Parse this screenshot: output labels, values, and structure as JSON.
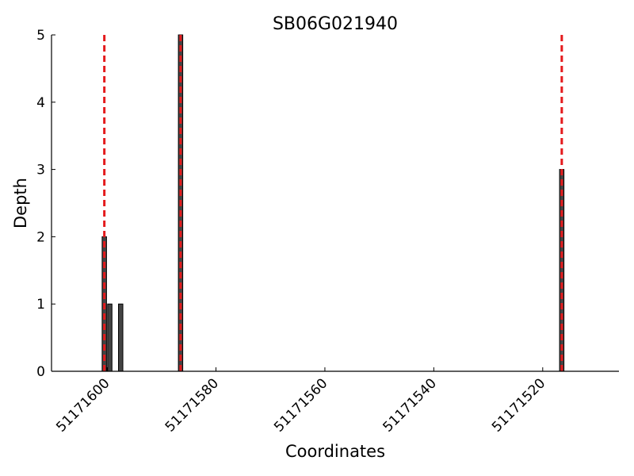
{
  "chart_data": {
    "type": "bar",
    "title": "SB06G021940",
    "xlabel": "Coordinates",
    "ylabel": "Depth",
    "x": [
      51171601,
      51171600,
      51171598,
      51171587,
      51171517
    ],
    "values": [
      2,
      1,
      1,
      5,
      3
    ],
    "color": "#444444",
    "vlines": [
      51171601,
      51171587,
      51171517
    ],
    "vline_color": "#e41a1c",
    "xlim": [
      51171610.2,
      51171506.0
    ],
    "xticks": [
      51171600,
      51171580,
      51171560,
      51171540,
      51171520
    ],
    "ylim": [
      0,
      5
    ],
    "yticks": [
      0,
      1,
      2,
      3,
      4,
      5
    ],
    "grid": false
  }
}
